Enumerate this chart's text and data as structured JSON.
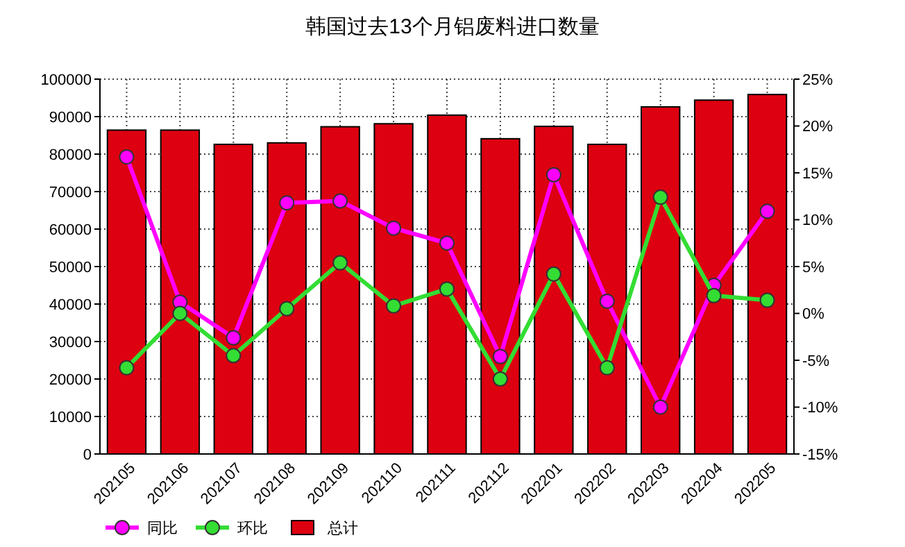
{
  "chart_data": {
    "type": "bar",
    "title": "韩国过去13个月铝废料进口数量",
    "categories": [
      "202105",
      "202106",
      "202107",
      "202108",
      "202109",
      "202110",
      "202111",
      "202112",
      "202201",
      "202202",
      "202203",
      "202204",
      "202205"
    ],
    "series": [
      {
        "name": "同比",
        "type": "line",
        "axis": "y2",
        "color": "#ff00ff",
        "values": [
          16.7,
          1.2,
          -2.6,
          11.8,
          12.0,
          9.1,
          7.5,
          -4.6,
          14.8,
          1.3,
          -10.0,
          3.0,
          10.9
        ]
      },
      {
        "name": "环比",
        "type": "line",
        "axis": "y2",
        "color": "#33dd33",
        "values": [
          -5.8,
          0,
          -4.5,
          0.5,
          5.4,
          0.8,
          2.6,
          -7.0,
          4.2,
          -5.8,
          12.4,
          1.9,
          1.4
        ]
      },
      {
        "name": "总计",
        "color": "#dd0010",
        "values": [
          86400,
          86400,
          82600,
          83000,
          87300,
          88100,
          90400,
          84100,
          87400,
          82600,
          92600,
          94400,
          95900
        ]
      }
    ],
    "ylim": [
      0,
      100000
    ],
    "yticks": [
      0,
      10000,
      20000,
      30000,
      40000,
      50000,
      60000,
      70000,
      80000,
      90000,
      100000
    ],
    "y2lim": [
      -15,
      25
    ],
    "y2ticks": [
      {
        "value": -15,
        "label": "-15%"
      },
      {
        "value": -10,
        "label": "-10%"
      },
      {
        "value": -5,
        "label": "-5%"
      },
      {
        "value": 0,
        "label": "0%"
      },
      {
        "value": 5,
        "label": "5%"
      },
      {
        "value": 10,
        "label": "10%"
      },
      {
        "value": 15,
        "label": "15%"
      },
      {
        "value": 20,
        "label": "20%"
      },
      {
        "value": 25,
        "label": "25%"
      }
    ],
    "grid": true,
    "legend": "bottom left",
    "marker": "circle"
  }
}
